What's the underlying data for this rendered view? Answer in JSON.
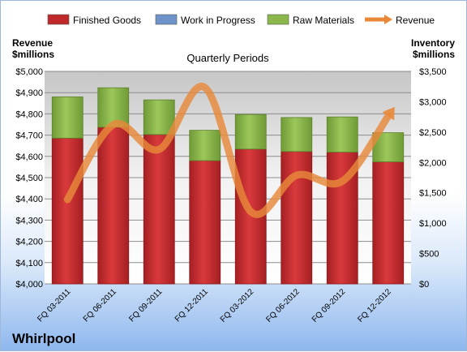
{
  "chart_data": {
    "type": "bar",
    "subtitle": "Quarterly Periods",
    "company": "Whirlpool",
    "ylabel_left": [
      "Revenue",
      "$millions"
    ],
    "ylabel_right": [
      "Inventory",
      "$millions"
    ],
    "categories": [
      "FQ 03-2011",
      "FQ 06-2011",
      "FQ 09-2011",
      "FQ 12-2011",
      "FQ 03-2012",
      "FQ 06-2012",
      "FQ 09-2012",
      "FQ 12-2012"
    ],
    "left_ticks": [
      "$4,000",
      "$4,100",
      "$4,200",
      "$4,300",
      "$4,400",
      "$4,500",
      "$4,600",
      "$4,700",
      "$4,800",
      "$4,900",
      "$5,000"
    ],
    "right_ticks": [
      "$0",
      "$500",
      "$1,000",
      "$1,500",
      "$2,000",
      "$2,500",
      "$3,000",
      "$3,500"
    ],
    "ylim_left": [
      4000,
      5000
    ],
    "ylim_right": [
      0,
      3500
    ],
    "series": [
      {
        "name": "Finished Goods",
        "kind": "bar",
        "axis": "right",
        "color": "#c0292b",
        "values": [
          2400,
          2580,
          2460,
          2030,
          2220,
          2180,
          2170,
          2010
        ]
      },
      {
        "name": "Work in Progress",
        "kind": "bar",
        "axis": "right",
        "color": "#6d93c9",
        "values": [
          0,
          0,
          0,
          0,
          0,
          0,
          0,
          0
        ]
      },
      {
        "name": "Raw Materials",
        "kind": "bar",
        "axis": "right",
        "color": "#8ab84a",
        "values": [
          680,
          650,
          570,
          500,
          570,
          560,
          580,
          480
        ]
      },
      {
        "name": "Revenue",
        "kind": "line",
        "axis": "left",
        "color": "#e8893a",
        "values": [
          4397,
          4749,
          4633,
          4924,
          4340,
          4511,
          4483,
          4789
        ]
      }
    ],
    "grid": true,
    "legend_position": "top"
  }
}
